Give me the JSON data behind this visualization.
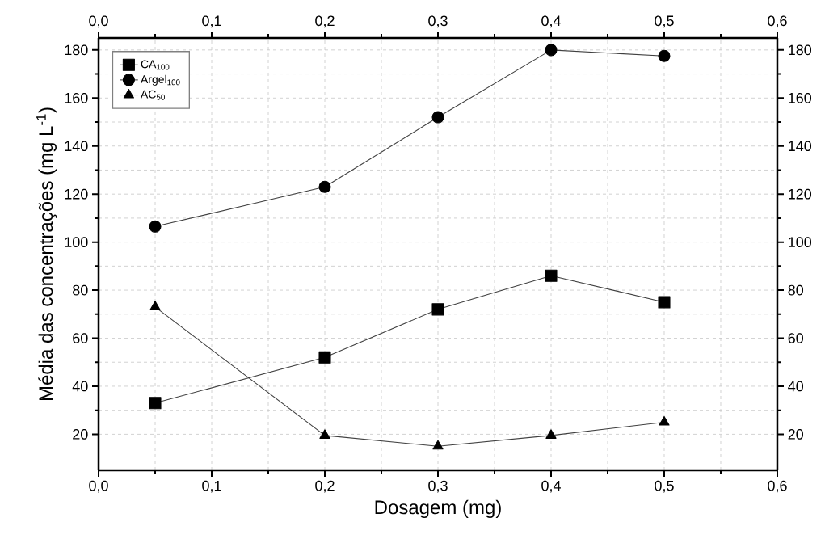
{
  "chart_data": {
    "type": "line",
    "xlabel": "Dosagem (mg)",
    "ylabel": "Média das concentrações (mg L$^{-1}$)",
    "x": [
      0.05,
      0.2,
      0.3,
      0.4,
      0.5
    ],
    "series": [
      {
        "name": "CA$_{100}$",
        "color": "#000000",
        "marker": "square",
        "values": [
          33,
          52,
          72,
          86,
          75
        ]
      },
      {
        "name": "Argel$_{100}$",
        "color": "#000000",
        "marker": "circle",
        "values": [
          106.5,
          123,
          152,
          180,
          177.5
        ]
      },
      {
        "name": "AC$_{50}$",
        "color": "#000000",
        "marker": "triangle",
        "values": [
          73,
          19.5,
          15,
          19.5,
          25
        ]
      }
    ],
    "xlim": [
      0,
      0.6
    ],
    "xticks": [
      {
        "value": 0,
        "label": "0,0"
      },
      {
        "value": 0.1,
        "label": "0,1"
      },
      {
        "value": 0.2,
        "label": "0,2"
      },
      {
        "value": 0.3,
        "label": "0,3"
      },
      {
        "value": 0.4,
        "label": "0,4"
      },
      {
        "value": 0.5,
        "label": "0,5"
      },
      {
        "value": 0.6,
        "label": "0,6"
      }
    ],
    "x2lim": [
      0,
      0.6
    ],
    "x2ticks": [
      {
        "value": 0,
        "label": "0,0"
      },
      {
        "value": 0.1,
        "label": "0,1"
      },
      {
        "value": 0.2,
        "label": "0,2"
      },
      {
        "value": 0.3,
        "label": "0,3"
      },
      {
        "value": 0.4,
        "label": "0,4"
      },
      {
        "value": 0.5,
        "label": "0,5"
      },
      {
        "value": 0.6,
        "label": "0,6"
      }
    ],
    "ylim": [
      5,
      185
    ],
    "yticks": [
      20,
      40,
      60,
      80,
      100,
      120,
      140,
      160,
      180
    ],
    "y2lim": [
      5,
      185
    ],
    "y2ticks": [
      20,
      40,
      60,
      80,
      100,
      120,
      140,
      160,
      180
    ],
    "grid": true,
    "legend": "top left",
    "line_style": "solid"
  }
}
